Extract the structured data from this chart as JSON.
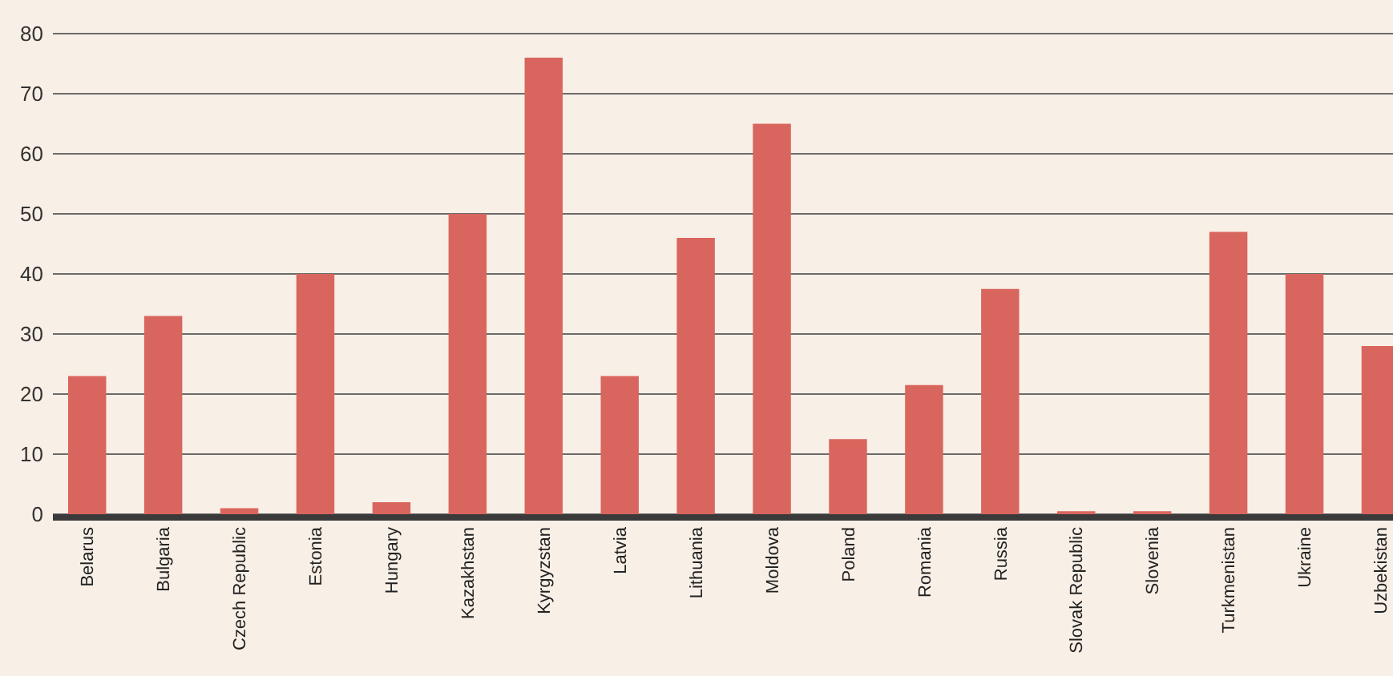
{
  "chart_data": {
    "type": "bar",
    "categories": [
      "Belarus",
      "Bulgaria",
      "Czech Republic",
      "Estonia",
      "Hungary",
      "Kazakhstan",
      "Kyrgyzstan",
      "Latvia",
      "Lithuania",
      "Moldova",
      "Poland",
      "Romania",
      "Russia",
      "Slovak Republic",
      "Slovenia",
      "Turkmenistan",
      "Ukraine",
      "Uzbekistan"
    ],
    "values": [
      23,
      33,
      1,
      40,
      2,
      50,
      76,
      23,
      46,
      65,
      12.5,
      21.5,
      37.5,
      0.5,
      0.5,
      47,
      40,
      28
    ],
    "color": "#d9665e",
    "ylim": [
      0,
      80
    ],
    "yticks": [
      0,
      10,
      20,
      30,
      40,
      50,
      60,
      70,
      80
    ],
    "grid": "y"
  }
}
